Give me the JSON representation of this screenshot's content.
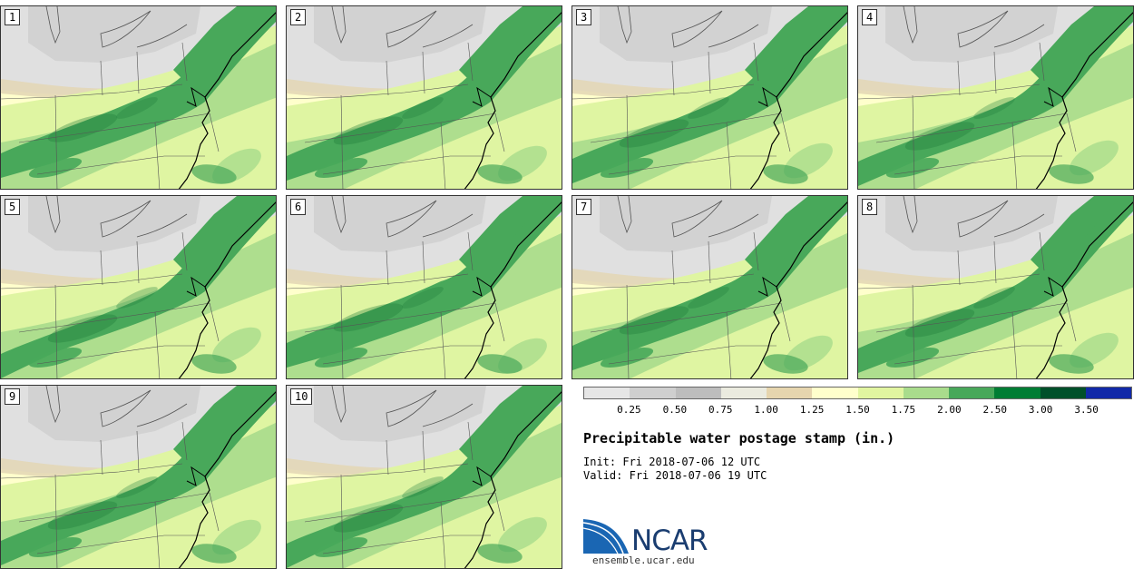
{
  "title": "Precipitable water postage stamp (in.)",
  "init": "Fri 2018-07-06 12 UTC",
  "valid": "Fri 2018-07-06 19 UTC",
  "init_label": "Init:",
  "valid_label": "Valid:",
  "website": "ensemble.ucar.edu",
  "logo_text": "NCAR",
  "members": [
    "1",
    "2",
    "3",
    "4",
    "5",
    "6",
    "7",
    "8",
    "9",
    "10"
  ],
  "colorbar": {
    "ticks": [
      "0.25",
      "0.50",
      "0.75",
      "1.00",
      "1.25",
      "1.50",
      "1.75",
      "2.00",
      "2.50",
      "3.00",
      "3.50"
    ],
    "colors": [
      "#e6e6e6",
      "#cfcfcf",
      "#bdbdbd",
      "#ebebdf",
      "#e6d5ae",
      "#ffffcc",
      "#e1f5a0",
      "#a9dc8c",
      "#48a85a",
      "#007d34",
      "#00502a",
      "#1129a8"
    ]
  },
  "map_colors": {
    "grey_light": "#e0e0e0",
    "grey_mid": "#c8c8c8",
    "tan": "#e3d6b4",
    "pale_yellow": "#ffffcc",
    "light_green": "#dff5a2",
    "mid_green": "#a8dc8c",
    "green": "#48a85a",
    "dark_green": "#1f7a3a",
    "border": "#555555",
    "coast": "#000000"
  }
}
